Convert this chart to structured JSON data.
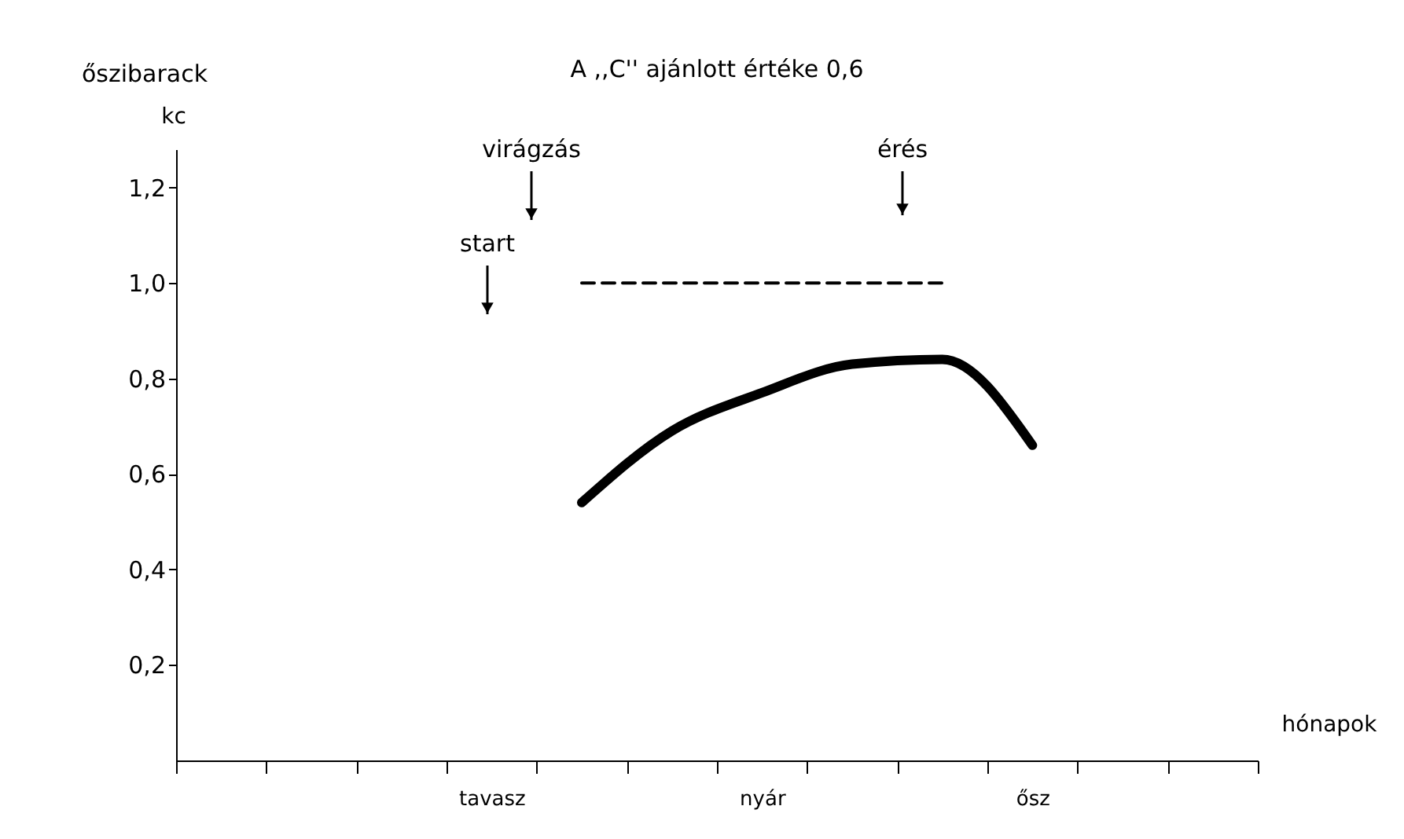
{
  "chart_data": {
    "type": "line",
    "title": "A ,,C'' ajánlott értéke 0,6",
    "xlabel": "hónapok",
    "ylabel": "kc",
    "categories": [
      null,
      null,
      null,
      "tavasz",
      null,
      null,
      "nyár",
      null,
      null,
      "ősz",
      null,
      null
    ],
    "ylim": [
      0,
      1.28
    ],
    "yticks": [
      {
        "value": 0.2,
        "label": "0,2"
      },
      {
        "value": 0.4,
        "label": "0,4"
      },
      {
        "value": 0.6,
        "label": "0,6"
      },
      {
        "value": 0.8,
        "label": "0,8"
      },
      {
        "value": 1.0,
        "label": "1,0"
      },
      {
        "value": 1.2,
        "label": "1,2"
      }
    ],
    "grid": false,
    "legend": false,
    "marker": "none",
    "series": [
      {
        "color": "#000000",
        "line_style": "solid",
        "values": [
          null,
          null,
          null,
          null,
          0.54,
          0.69,
          0.77,
          0.83,
          0.84,
          0.66,
          null,
          null
        ]
      },
      {
        "color": "#000000",
        "line_style": "dashed",
        "values": [
          null,
          null,
          null,
          null,
          1.0,
          1.0,
          1.0,
          1.0,
          1.0,
          null,
          null,
          null
        ]
      }
    ],
    "annotations": [
      "őszibarack",
      "start",
      "virágzás",
      "érés"
    ]
  }
}
